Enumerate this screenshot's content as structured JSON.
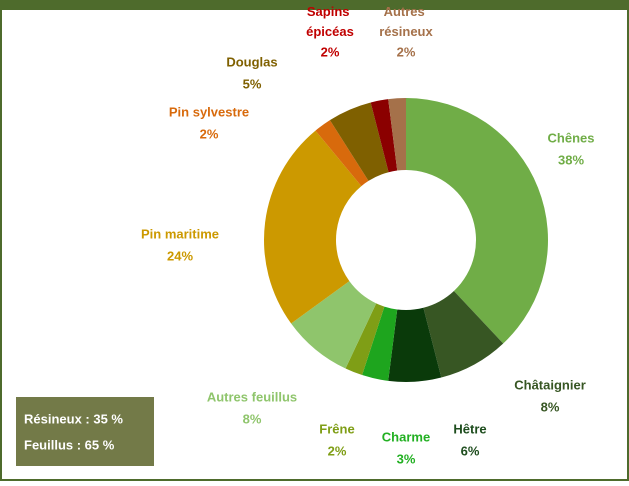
{
  "chart_data": {
    "type": "donut",
    "categories": [
      "Chênes",
      "Châtaignier",
      "Hêtre",
      "Charme",
      "Frêne",
      "Autres feuillus",
      "Pin maritime",
      "Pin sylvestre",
      "Douglas",
      "Sapins épicéas",
      "Autres résineux"
    ],
    "values": [
      38,
      8,
      6,
      3,
      2,
      8,
      24,
      2,
      5,
      2,
      2
    ],
    "value_labels": [
      "38%",
      "8%",
      "6%",
      "3%",
      "2%",
      "8%",
      "24%",
      "2%",
      "5%",
      "2%",
      "2%"
    ],
    "colors": [
      "#70ad47",
      "#375623",
      "#0a3a0a",
      "#1ea51e",
      "#7f9e16",
      "#8fc56c",
      "#cc9900",
      "#d86a0c",
      "#7f6000",
      "#8b0000",
      "#a5714a"
    ],
    "annotations": [
      "Résineux : 35 %",
      "Feuillus : 65 %"
    ]
  }
}
